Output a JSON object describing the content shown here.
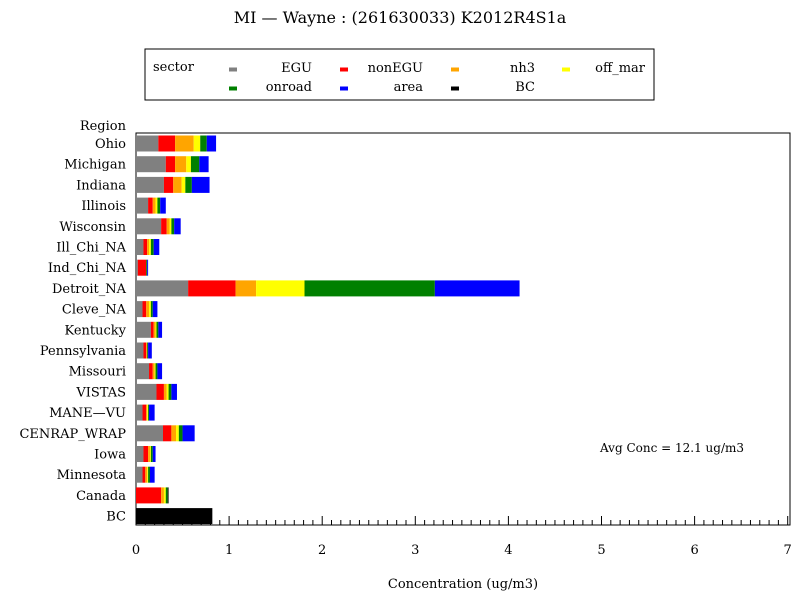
{
  "chart_data": {
    "type": "bar",
    "stacked": true,
    "orientation": "horizontal",
    "title": "MI — Wayne : (261630033) K2012R4S1a",
    "xlabel": "Concentration (ug/m3)",
    "ylabel": "Region",
    "xlim": [
      0,
      7
    ],
    "x_ticks": [
      "0",
      "1",
      "2",
      "3",
      "4",
      "5",
      "6",
      "7"
    ],
    "legend": {
      "title": "sector",
      "placement": "top-center"
    },
    "annotation": "Avg Conc = 12.1 ug/m3",
    "categories": [
      "Ohio",
      "Michigan",
      "Indiana",
      "Illinois",
      "Wisconsin",
      "Ill_Chi_NA",
      "Ind_Chi_NA",
      "Detroit_NA",
      "Cleve_NA",
      "Kentucky",
      "Pennsylvania",
      "Missouri",
      "VISTAS",
      "MANE—VU",
      "CENRAP_WRAP",
      "Iowa",
      "Minnesota",
      "Canada",
      "BC"
    ],
    "series": [
      {
        "name": "EGU",
        "color": "#808080",
        "values": [
          0.24,
          0.32,
          0.3,
          0.13,
          0.27,
          0.08,
          0.02,
          0.56,
          0.07,
          0.16,
          0.08,
          0.14,
          0.22,
          0.07,
          0.29,
          0.08,
          0.07,
          0.0,
          0.0
        ]
      },
      {
        "name": "nonEGU",
        "color": "#ff0000",
        "values": [
          0.18,
          0.1,
          0.1,
          0.05,
          0.06,
          0.04,
          0.09,
          0.51,
          0.04,
          0.03,
          0.03,
          0.04,
          0.08,
          0.04,
          0.09,
          0.05,
          0.03,
          0.27,
          0.0
        ]
      },
      {
        "name": "nh3",
        "color": "#ffa500",
        "values": [
          0.2,
          0.12,
          0.09,
          0.03,
          0.03,
          0.02,
          0.0,
          0.22,
          0.03,
          0.02,
          0.01,
          0.02,
          0.03,
          0.01,
          0.05,
          0.02,
          0.02,
          0.03,
          0.0
        ]
      },
      {
        "name": "off_mar",
        "color": "#ffff00",
        "values": [
          0.07,
          0.05,
          0.04,
          0.02,
          0.02,
          0.02,
          0.0,
          0.52,
          0.02,
          0.01,
          0.0,
          0.01,
          0.02,
          0.01,
          0.03,
          0.01,
          0.01,
          0.02,
          0.0
        ]
      },
      {
        "name": "onroad",
        "color": "#008000",
        "values": [
          0.07,
          0.09,
          0.07,
          0.03,
          0.03,
          0.03,
          0.01,
          1.4,
          0.02,
          0.02,
          0.01,
          0.02,
          0.03,
          0.01,
          0.04,
          0.02,
          0.02,
          0.02,
          0.0
        ]
      },
      {
        "name": "area",
        "color": "#0000ff",
        "values": [
          0.1,
          0.1,
          0.19,
          0.06,
          0.07,
          0.06,
          0.01,
          0.91,
          0.05,
          0.04,
          0.04,
          0.05,
          0.06,
          0.06,
          0.13,
          0.03,
          0.05,
          0.0,
          0.0
        ]
      },
      {
        "name": "BC",
        "color": "#000000",
        "values": [
          0.0,
          0.0,
          0.0,
          0.0,
          0.0,
          0.0,
          0.0,
          0.0,
          0.0,
          0.0,
          0.0,
          0.0,
          0.0,
          0.0,
          0.0,
          0.0,
          0.0,
          0.01,
          0.82
        ]
      }
    ]
  }
}
